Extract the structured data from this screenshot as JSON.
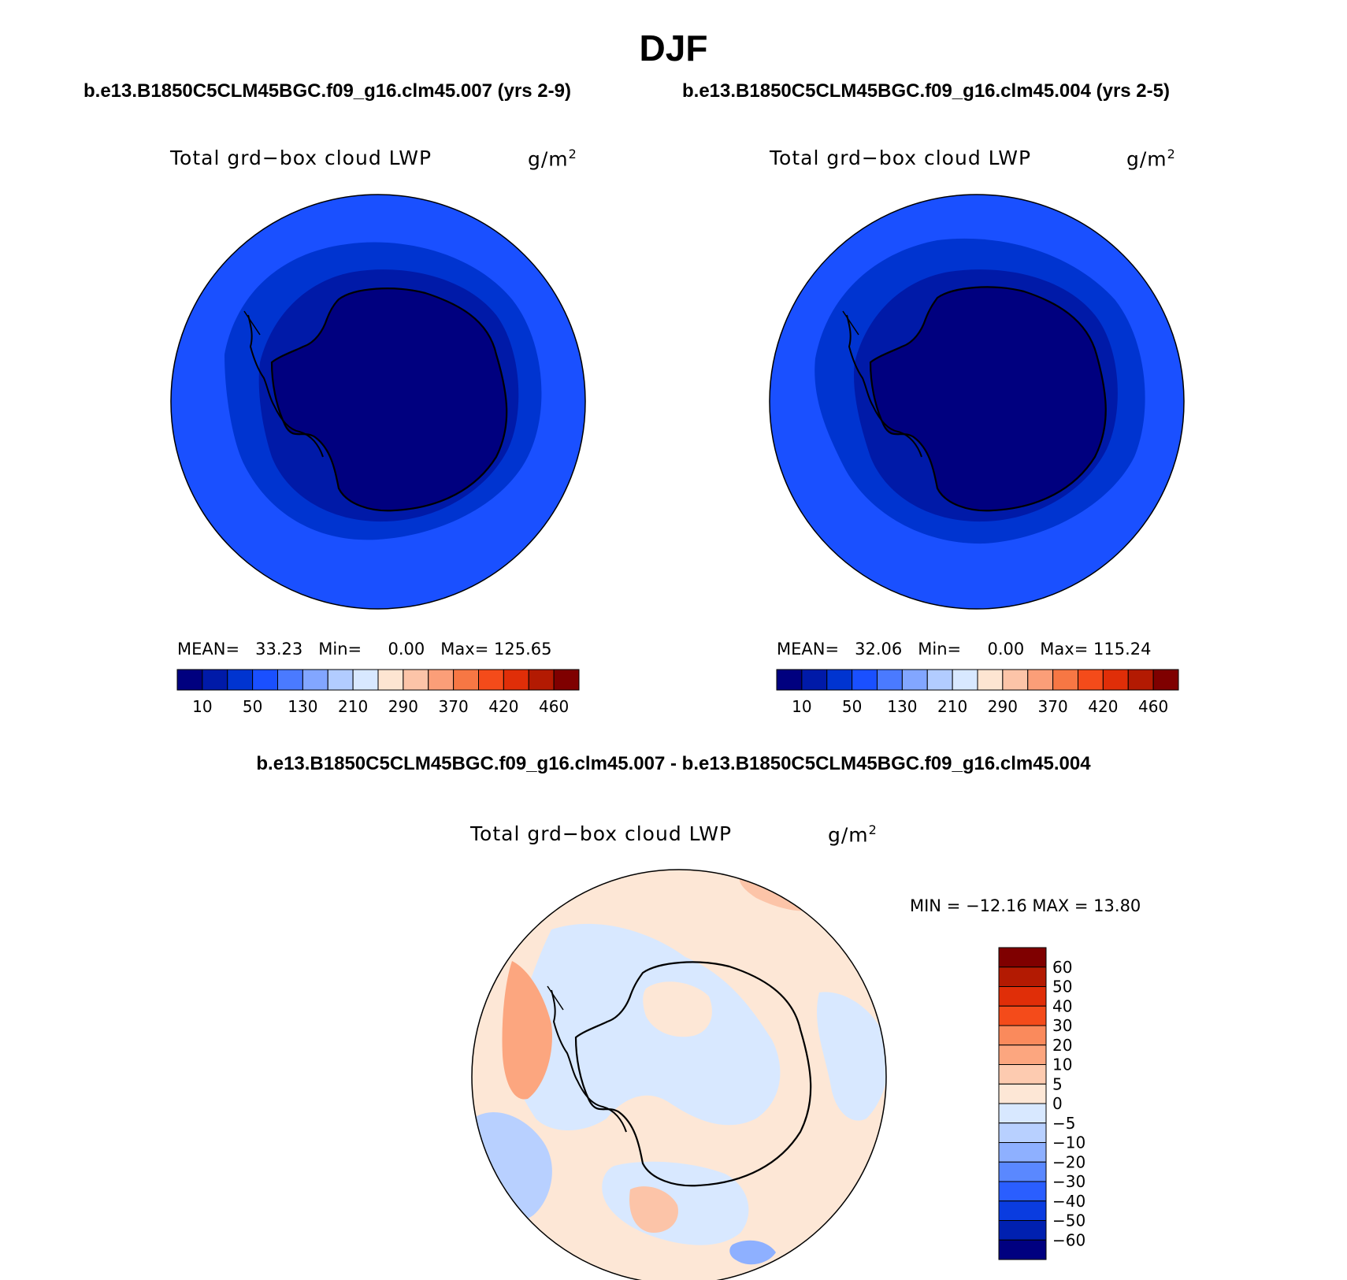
{
  "title": "DJF",
  "panels": [
    {
      "case_title": "b.e13.B1850C5CLM45BGC.f09_g16.clm45.007 (yrs 2-9)",
      "variable_label": "Total grd−box cloud LWP",
      "units_base": "g/m",
      "units_exp": "2",
      "stats": {
        "mean_label": "MEAN=",
        "mean": "33.23",
        "min_label": "Min=",
        "min": "0.00",
        "max_label": "Max=",
        "max": "125.65"
      }
    },
    {
      "case_title": "b.e13.B1850C5CLM45BGC.f09_g16.clm45.004 (yrs 2-5)",
      "variable_label": "Total grd−box cloud LWP",
      "units_base": "g/m",
      "units_exp": "2",
      "stats": {
        "mean_label": "MEAN=",
        "mean": "32.06",
        "min_label": "Min=",
        "min": "0.00",
        "max_label": "Max=",
        "max": "115.24"
      }
    }
  ],
  "colorbar_h": {
    "colors": [
      "#00007f",
      "#001aa8",
      "#0034d0",
      "#1a50ff",
      "#4a7aff",
      "#82a6ff",
      "#b2ccff",
      "#d8e8ff",
      "#fde5d2",
      "#fcc4a8",
      "#fb9e78",
      "#f77744",
      "#f44b1a",
      "#e02e08",
      "#b31a02",
      "#7f0000"
    ],
    "labels": [
      "10",
      "50",
      "130",
      "210",
      "290",
      "370",
      "420",
      "460"
    ]
  },
  "difference": {
    "title": "b.e13.B1850C5CLM45BGC.f09_g16.clm45.007 - b.e13.B1850C5CLM45BGC.f09_g16.clm45.004",
    "variable_label": "Total grd−box cloud LWP",
    "units_base": "g/m",
    "units_exp": "2",
    "min_max": "MIN = −12.16 MAX =   13.80",
    "colorbar": {
      "colors": [
        "#7f0000",
        "#b31a02",
        "#e02e08",
        "#f44b1a",
        "#fa8a5c",
        "#fca67f",
        "#fdcbb0",
        "#fde7d6",
        "#d8e8ff",
        "#b8d0ff",
        "#8eb0ff",
        "#5a88ff",
        "#2a5eff",
        "#0a3ce0",
        "#0020b0",
        "#000080"
      ],
      "labels": [
        "60",
        "50",
        "40",
        "30",
        "20",
        "10",
        "5",
        "0",
        "−5",
        "−10",
        "−20",
        "−30",
        "−40",
        "−50",
        "−60"
      ]
    }
  }
}
